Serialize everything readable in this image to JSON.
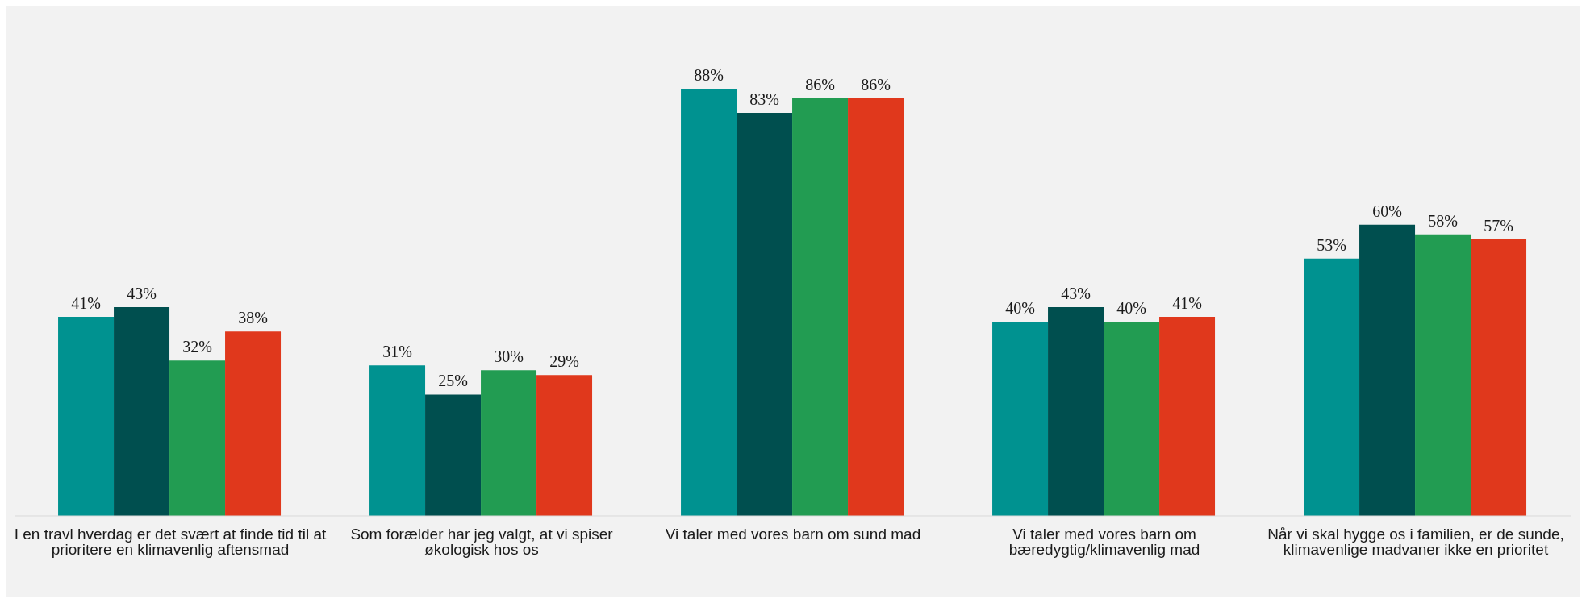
{
  "chart_data": {
    "type": "bar",
    "categories": [
      "I en travl hverdag er det svært at finde tid til at prioritere en klimavenlig aftensmad",
      "Som forælder har jeg valgt, at vi spiser økologisk hos os",
      "Vi taler med vores barn om sund mad",
      "Vi taler med vores barn om bæredygtig/klimavenlig mad",
      "Når vi skal hygge os i familien, er de sunde, klimavenlige madvaner ikke en prioritet"
    ],
    "series": [
      {
        "color": "#009290",
        "values": [
          41,
          31,
          88,
          40,
          53
        ],
        "value_labels": [
          "41%",
          "31%",
          "88%",
          "40%",
          "53%"
        ]
      },
      {
        "color": "#004f4f",
        "values": [
          43,
          25,
          83,
          43,
          60
        ],
        "value_labels": [
          "43%",
          "25%",
          "83%",
          "43%",
          "60%"
        ]
      },
      {
        "color": "#229c52",
        "values": [
          32,
          30,
          86,
          40,
          58
        ],
        "value_labels": [
          "32%",
          "30%",
          "86%",
          "40%",
          "58%"
        ]
      },
      {
        "color": "#e0381c",
        "values": [
          38,
          29,
          86,
          41,
          57
        ],
        "value_labels": [
          "38%",
          "29%",
          "86%",
          "41%",
          "57%"
        ]
      }
    ],
    "grid": false,
    "legend": false,
    "tick_labels": "x"
  }
}
